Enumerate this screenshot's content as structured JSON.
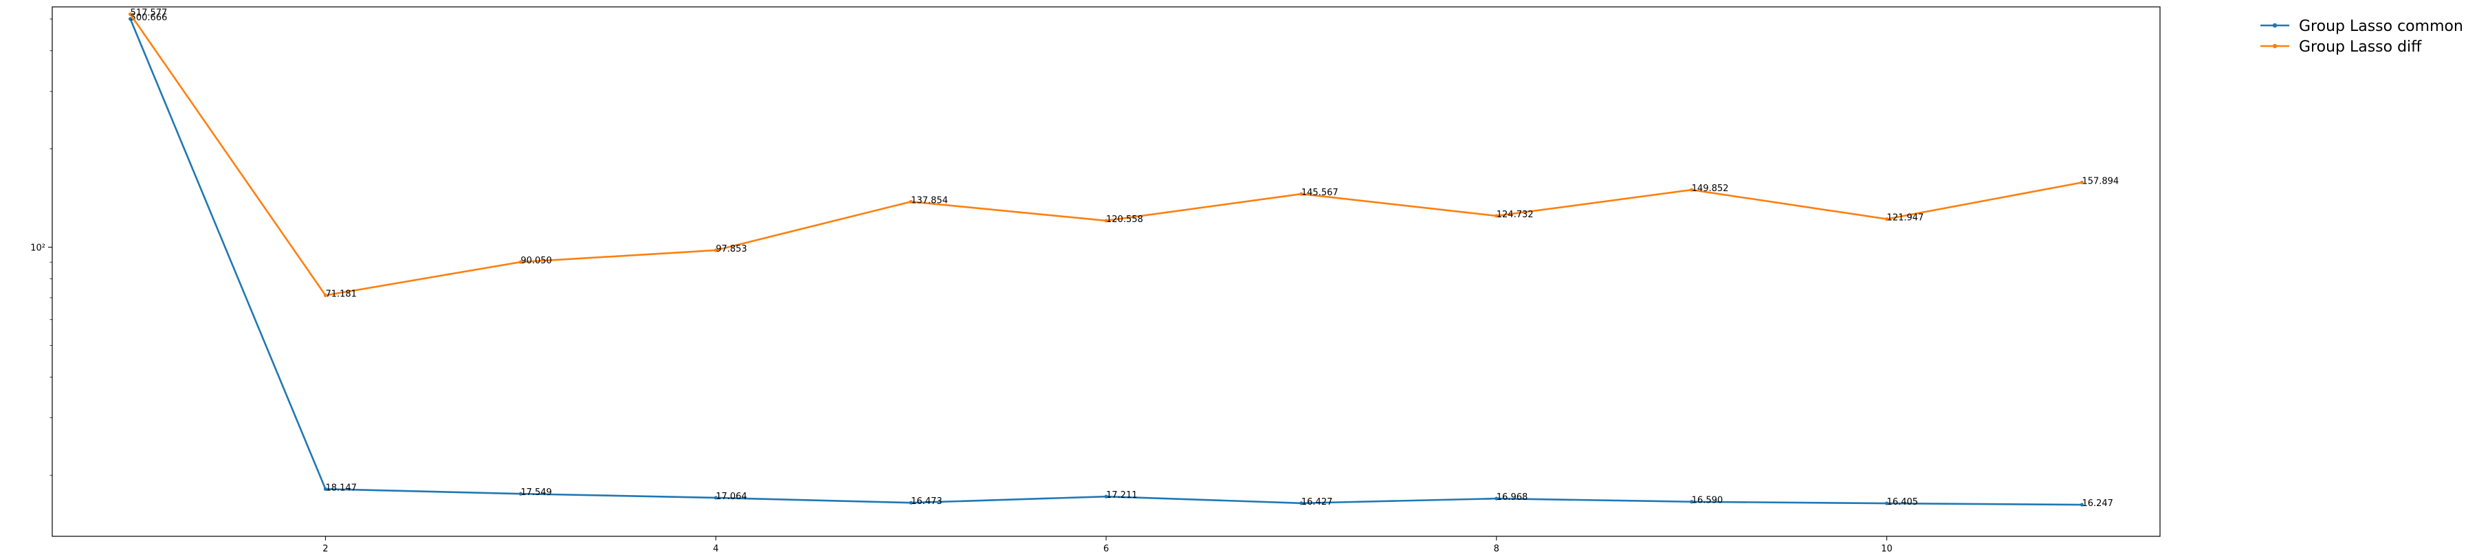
{
  "chart_data": {
    "type": "line",
    "title": "",
    "xlabel": "",
    "ylabel": "",
    "yscale": "log",
    "xlim": [
      0.6,
      11.4
    ],
    "ylim": [
      13.0,
      545.0
    ],
    "xticks": [
      2,
      4,
      6,
      8,
      10
    ],
    "xtick_labels": [
      "2",
      "4",
      "6",
      "8",
      "10"
    ],
    "yticks": [
      100
    ],
    "ytick_labels": [
      "10²"
    ],
    "grid": false,
    "legend_position": "outside-top-right",
    "x": [
      1,
      2,
      3,
      4,
      5,
      6,
      7,
      8,
      9,
      10,
      11
    ],
    "series": [
      {
        "name": "Group Lasso common",
        "color": "#1f77b4",
        "values": [
          500.666,
          18.147,
          17.549,
          17.064,
          16.473,
          17.211,
          16.427,
          16.968,
          16.59,
          16.405,
          16.247
        ],
        "labels": [
          "500.666",
          "18.147",
          "17.549",
          "17.064",
          "16.473",
          "17.211",
          "16.427",
          "16.968",
          "16.590",
          "16.405",
          "16.247"
        ]
      },
      {
        "name": "Group Lasso diff",
        "color": "#ff7f0e",
        "values": [
          517.577,
          71.181,
          90.05,
          97.853,
          137.854,
          120.558,
          145.567,
          124.732,
          149.852,
          121.947,
          157.894
        ],
        "labels": [
          "517.577",
          "71.181",
          "90.050",
          "97.853",
          "137.854",
          "120.558",
          "145.567",
          "124.732",
          "149.852",
          "121.947",
          "157.894"
        ]
      }
    ]
  }
}
